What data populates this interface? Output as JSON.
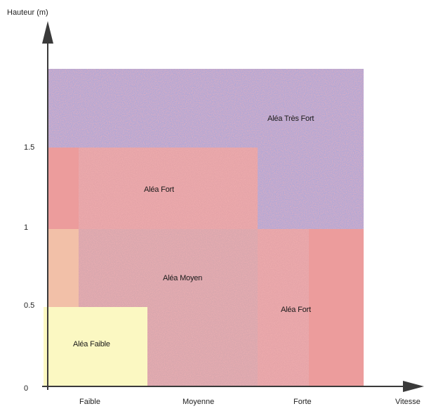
{
  "axes": {
    "y_title": "Hauteur (m)",
    "x_title": "Vitesse",
    "y_ticks": [
      "1.5",
      "1",
      "0.5",
      "0"
    ],
    "x_categories": [
      "Faible",
      "Moyenne",
      "Forte"
    ]
  },
  "zones": {
    "tres_fort": "Aléa Très Fort",
    "fort_top": "Aléa Fort",
    "moyen": "Aléa Moyen",
    "fort_right": "Aléa Fort",
    "faible": "Aléa Faible"
  },
  "colors": {
    "tres_fort": "#b4a8d4",
    "fort": "#e5a4a8",
    "fort_edge": "#ec9c9c",
    "moyen": "#d9a7ae",
    "moyen_edge": "#f2c0a8",
    "faible": "#fbf8c2",
    "axis": "#3a3a3a"
  }
}
